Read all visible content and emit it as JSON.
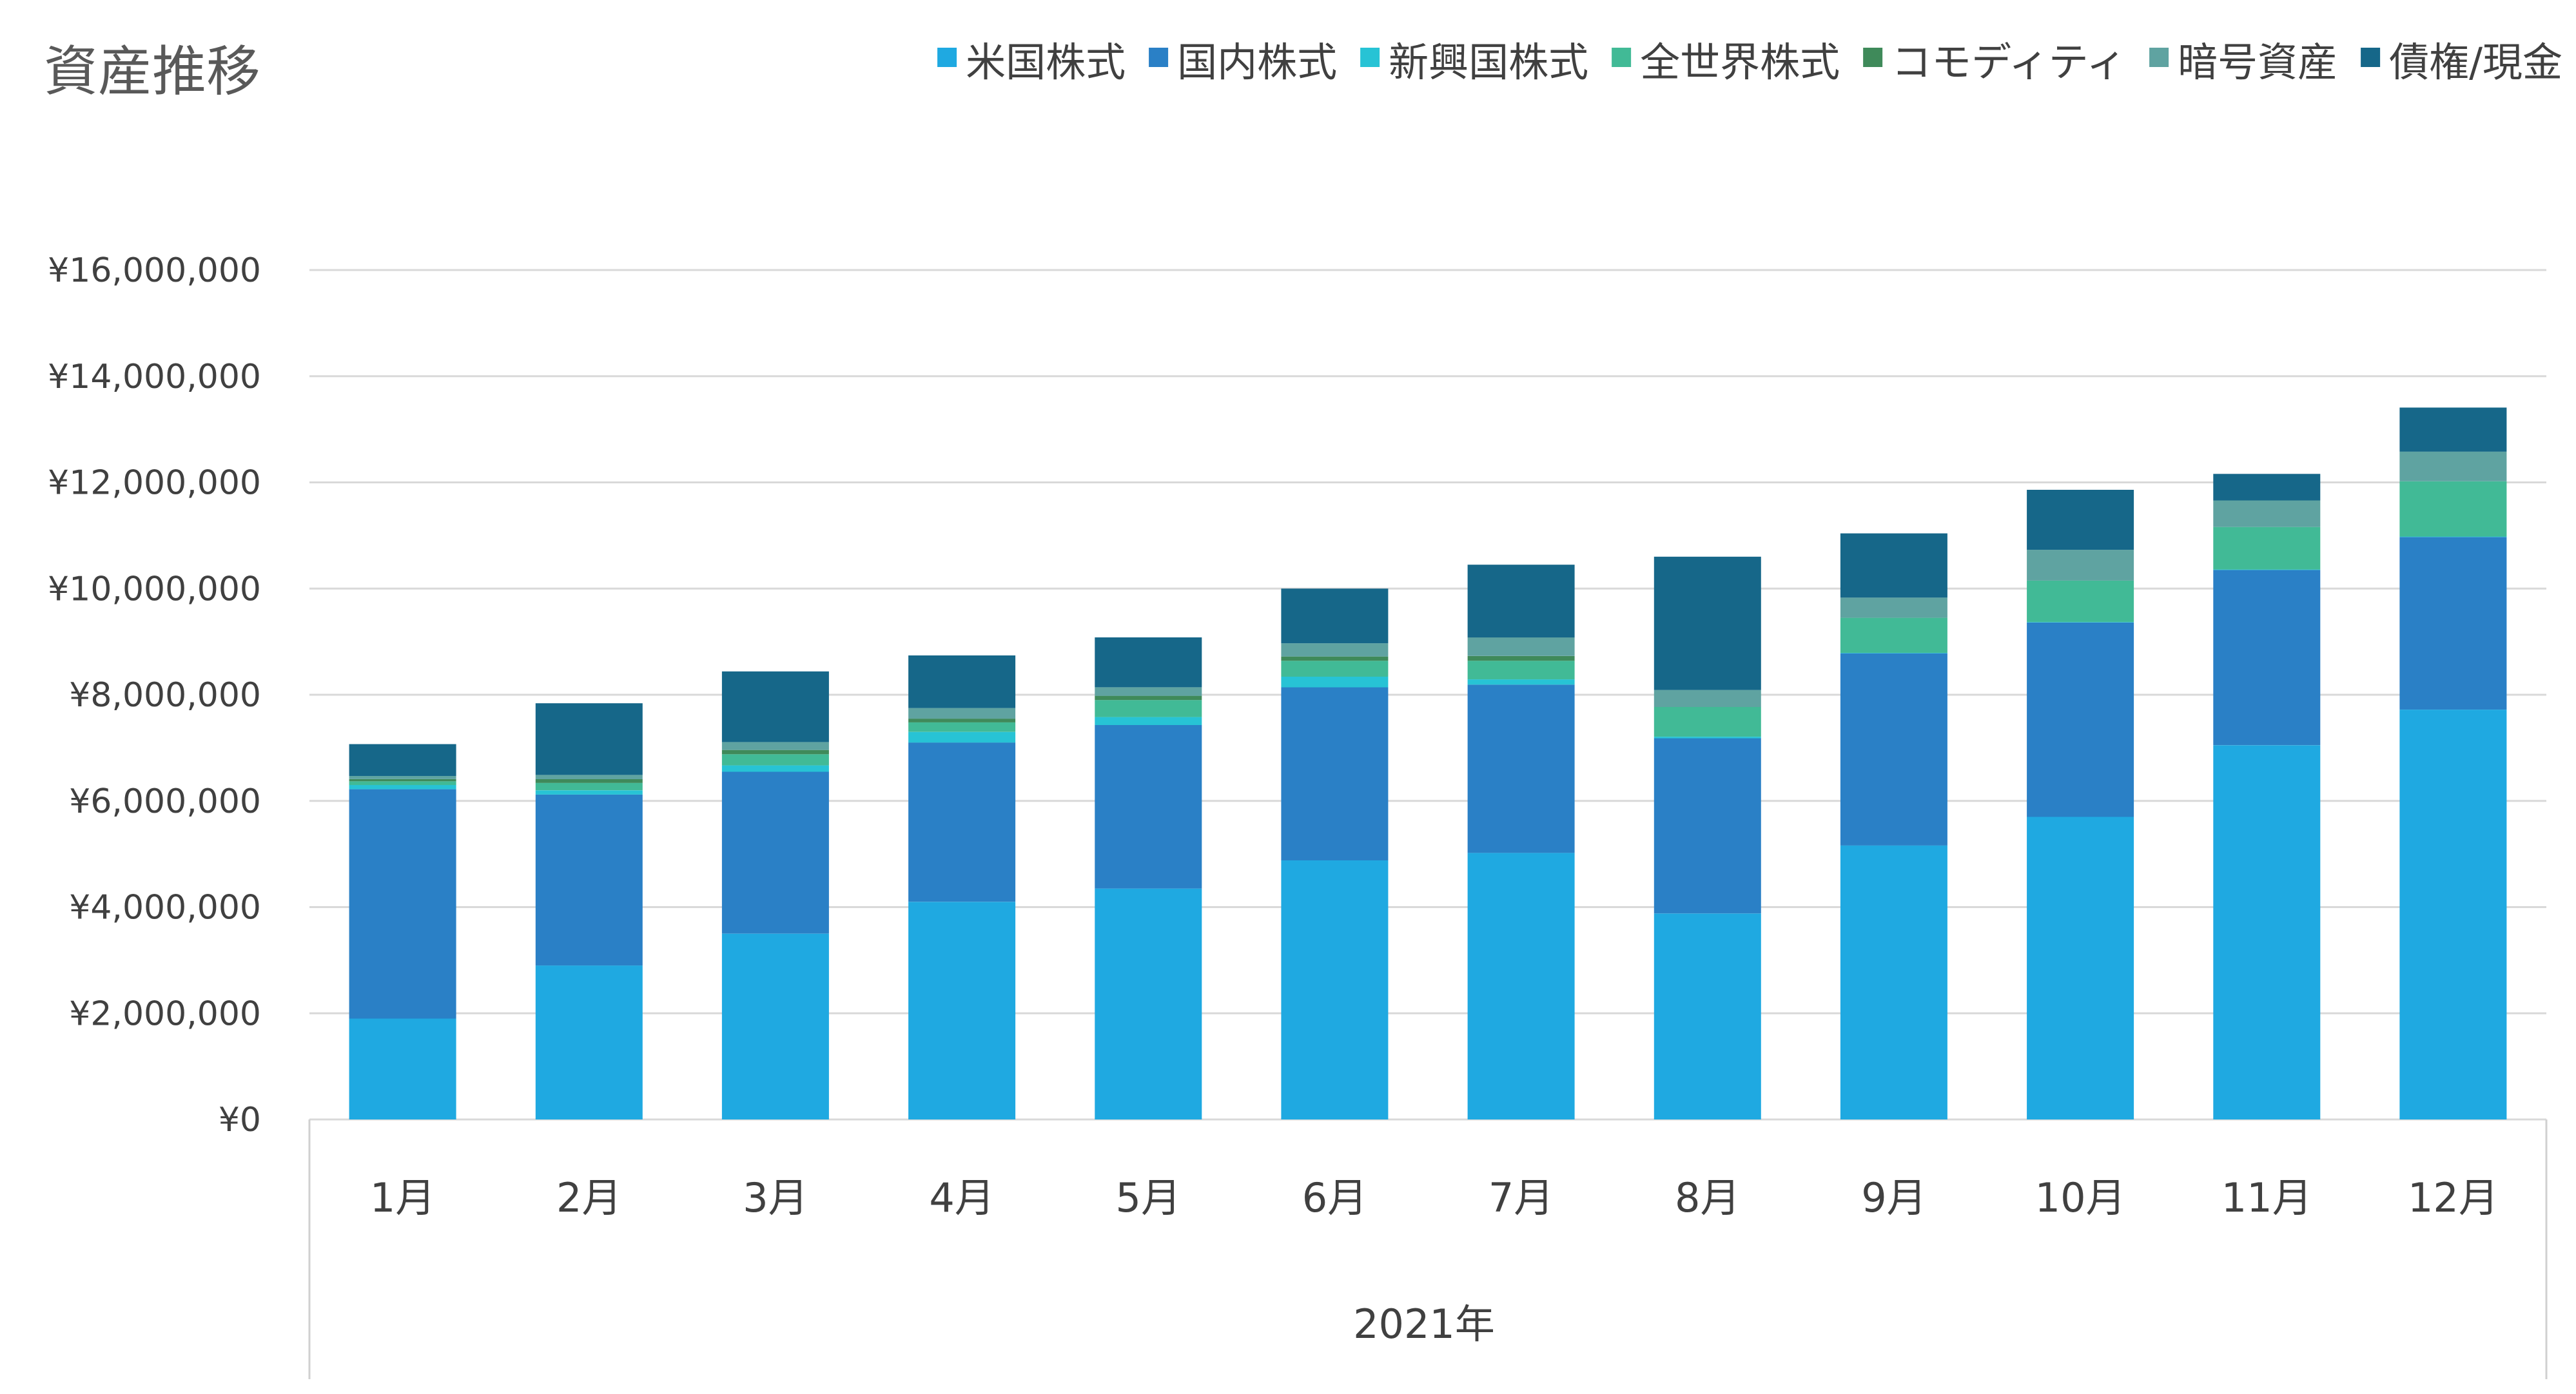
{
  "chart_data": {
    "type": "bar",
    "stacked": true,
    "title": "資産推移",
    "xgroup_label": "2021年",
    "categories": [
      "1月",
      "2月",
      "3月",
      "4月",
      "5月",
      "6月",
      "7月",
      "8月",
      "9月",
      "10月",
      "11月",
      "12月"
    ],
    "series": [
      {
        "name": "米国株式",
        "color": "#1FA9E1",
        "values": [
          1900000,
          2900000,
          3500000,
          4100000,
          4350000,
          4880000,
          5020000,
          3880000,
          5160000,
          5700000,
          7050000,
          7720000
        ]
      },
      {
        "name": "国内株式",
        "color": "#2A80C6",
        "values": [
          4320000,
          3220000,
          3050000,
          3000000,
          3080000,
          3260000,
          3170000,
          3300000,
          3620000,
          3660000,
          3300000,
          3250000
        ]
      },
      {
        "name": "新興国株式",
        "color": "#27C3D5",
        "values": [
          80000,
          80000,
          120000,
          200000,
          150000,
          200000,
          100000,
          30000,
          10000,
          10000,
          10000,
          10000
        ]
      },
      {
        "name": "全世界株式",
        "color": "#41BA96",
        "values": [
          70000,
          140000,
          210000,
          180000,
          320000,
          300000,
          350000,
          560000,
          660000,
          780000,
          800000,
          1040000
        ]
      },
      {
        "name": "コモディティ",
        "color": "#3F8A5A",
        "values": [
          40000,
          70000,
          80000,
          70000,
          80000,
          80000,
          90000,
          0,
          0,
          0,
          0,
          0
        ]
      },
      {
        "name": "暗号資産",
        "color": "#5FA3A1",
        "values": [
          60000,
          80000,
          150000,
          200000,
          160000,
          250000,
          350000,
          320000,
          380000,
          580000,
          500000,
          560000
        ]
      },
      {
        "name": "債権/現金",
        "color": "#166789",
        "values": [
          600000,
          1350000,
          1330000,
          990000,
          940000,
          1030000,
          1370000,
          2510000,
          1210000,
          1130000,
          500000,
          830000
        ]
      }
    ],
    "ylim": [
      0,
      16000000
    ],
    "yticks": [
      0,
      2000000,
      4000000,
      6000000,
      8000000,
      10000000,
      12000000,
      14000000,
      16000000
    ],
    "ytick_labels": [
      "¥0",
      "¥2,000,000",
      "¥4,000,000",
      "¥6,000,000",
      "¥8,000,000",
      "¥10,000,000",
      "¥12,000,000",
      "¥14,000,000",
      "¥16,000,000"
    ],
    "grid": true,
    "legend_position": "top-right",
    "gridline_color": "#D9D9D9",
    "axis_line_color": "#D0D0D0"
  }
}
